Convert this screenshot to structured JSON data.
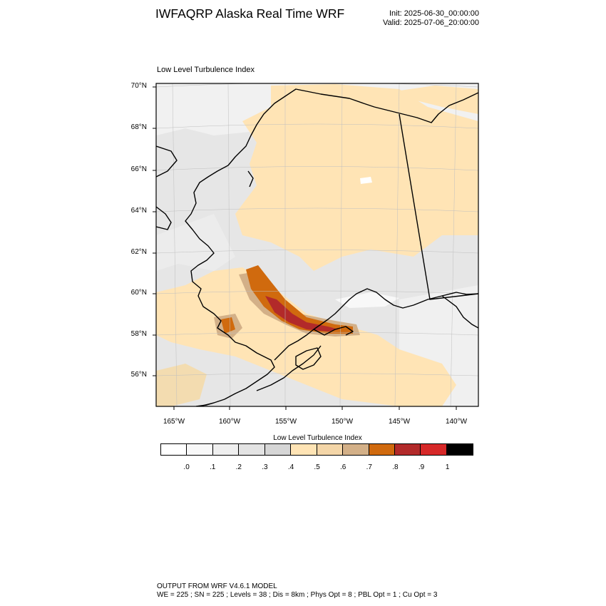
{
  "header": {
    "title": "IWFAQRP Alaska Real Time WRF",
    "init": "Init: 2025-06-30_00:00:00",
    "valid": "Valid: 2025-07-06_20:00:00"
  },
  "map": {
    "subtitle": "Low Level Turbulence Index",
    "lat_labels": [
      "70°N",
      "68°N",
      "66°N",
      "64°N",
      "62°N",
      "60°N",
      "58°N",
      "56°N"
    ],
    "lon_labels": [
      "165°W",
      "160°W",
      "155°W",
      "150°W",
      "145°W",
      "140°W"
    ],
    "colors": {
      "water": "#d9d9d9",
      "low": "#ececec",
      "mid": "#ffe4b5",
      "tan": "#d3b088",
      "orange": "#d06a0e",
      "red": "#b22a2a",
      "coast": "#000000"
    }
  },
  "colorbar": {
    "title": "Low Level Turbulence Index",
    "colors": [
      "#ffffff",
      "#f8f8f8",
      "#efefef",
      "#e3e3e3",
      "#d6d6d6",
      "#ffe4b5",
      "#f4d6a8",
      "#d3b088",
      "#d06a0e",
      "#b22a2a",
      "#d62828",
      "#000000"
    ],
    "labels": [
      ".0",
      ".1",
      ".2",
      ".3",
      ".4",
      ".5",
      ".6",
      ".7",
      ".8",
      ".9",
      "1"
    ]
  },
  "footer": {
    "line1": "OUTPUT FROM WRF V4.6.1 MODEL",
    "line2": "WE = 225 ; SN = 225 ; Levels = 38 ; Dis = 8km ; Phys Opt = 8 ; PBL Opt = 1 ; Cu Opt = 3"
  }
}
